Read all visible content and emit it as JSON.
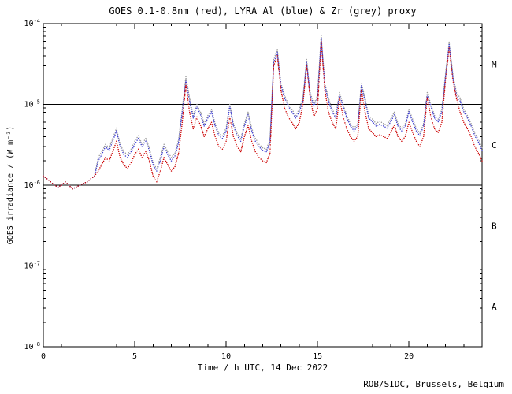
{
  "chart_data": {
    "type": "scatter",
    "title": "GOES 0.1-0.8nm (red), LYRA Al (blue) & Zr (grey) proxy",
    "xlabel": "Time / h UTC, 14 Dec 2022",
    "ylabel": "GOES irradiance / (W m⁻²)",
    "credit": "ROB/SIDC, Brussels, Belgium",
    "grid": false,
    "legend_position": "none (colors named in title)",
    "xlim": [
      0,
      24
    ],
    "ylog_range": [
      -8,
      -4
    ],
    "x_ticks": [
      0,
      5,
      10,
      15,
      20
    ],
    "x_minor_step": 1,
    "y_tick_exponents": [
      -4,
      -5,
      -6,
      -7,
      -8
    ],
    "class_boundary_exponents": [
      -5,
      -6,
      -7
    ],
    "flare_classes": [
      {
        "label": "M",
        "mid_exp": -4.5
      },
      {
        "label": "C",
        "mid_exp": -5.5
      },
      {
        "label": "B",
        "mid_exp": -6.5
      },
      {
        "label": "A",
        "mid_exp": -7.5
      }
    ],
    "x_start": 0,
    "x_step": 0.2,
    "series": [
      {
        "name": "Zr proxy",
        "color": "#9a9a9a",
        "values": [
          1.3e-06,
          1.2e-06,
          1.1e-06,
          1e-06,
          9.5e-07,
          1e-06,
          1.1e-06,
          1e-06,
          9e-07,
          9.5e-07,
          1e-06,
          1.05e-06,
          1.1e-06,
          1.2e-06,
          1.3e-06,
          2.2e-06,
          2.6e-06,
          3.2e-06,
          2.9e-06,
          3.8e-06,
          5.1e-06,
          3.2e-06,
          2.6e-06,
          2.4e-06,
          2.8e-06,
          3.5e-06,
          4.1e-06,
          3.2e-06,
          3.8e-06,
          2.9e-06,
          1.9e-06,
          1.6e-06,
          2.2e-06,
          3.2e-06,
          2.6e-06,
          2.2e-06,
          2.5e-06,
          3.7e-06,
          8.7e-06,
          2.2e-05,
          1.2e-05,
          7.3e-06,
          1e-05,
          8e-06,
          5.8e-06,
          7.3e-06,
          8.7e-06,
          5.8e-06,
          4.4e-06,
          4.1e-06,
          5.1e-06,
          1e-05,
          5.8e-06,
          4.4e-06,
          3.8e-06,
          5.8e-06,
          8e-06,
          5.1e-06,
          3.8e-06,
          3.2e-06,
          2.9e-06,
          2.8e-06,
          3.7e-06,
          3.6e-05,
          4.8e-05,
          1.8e-05,
          1.3e-05,
          1e-05,
          8.7e-06,
          7.3e-06,
          8.7e-06,
          1.2e-05,
          3.6e-05,
          1.4e-05,
          1e-05,
          1.3e-05,
          7.1e-05,
          1.8e-05,
          1.2e-05,
          8.7e-06,
          7.3e-06,
          1.4e-05,
          1e-05,
          7.3e-06,
          5.8e-06,
          5.1e-06,
          5.8e-06,
          1.8e-05,
          1.2e-05,
          7.3e-06,
          6.6e-06,
          5.8e-06,
          6.2e-06,
          5.8e-06,
          5.5e-06,
          6.6e-06,
          8e-06,
          5.8e-06,
          5.1e-06,
          5.8e-06,
          8.7e-06,
          6.6e-06,
          5.1e-06,
          4.4e-06,
          5.8e-06,
          1.4e-05,
          1e-05,
          7.3e-06,
          6.6e-06,
          8.7e-06,
          2.4e-05,
          5.9e-05,
          2.4e-05,
          1.4e-05,
          1.2e-05,
          8.7e-06,
          7.3e-06,
          5.8e-06,
          4.4e-06,
          3.7e-06,
          2.9e-06
        ]
      },
      {
        "name": "LYRA Al",
        "color": "#3b3bd0",
        "values": [
          1.3e-06,
          1.2e-06,
          1.1e-06,
          1e-06,
          9.5e-07,
          1e-06,
          1.1e-06,
          1e-06,
          9e-07,
          9.5e-07,
          1e-06,
          1.05e-06,
          1.1e-06,
          1.2e-06,
          1.3e-06,
          2e-06,
          2.4e-06,
          3e-06,
          2.7e-06,
          3.5e-06,
          4.7e-06,
          3e-06,
          2.4e-06,
          2.2e-06,
          2.6e-06,
          3.2e-06,
          3.8e-06,
          3e-06,
          3.5e-06,
          2.7e-06,
          1.8e-06,
          1.5e-06,
          2e-06,
          3e-06,
          2.4e-06,
          2e-06,
          2.3e-06,
          3.4e-06,
          8.1e-06,
          2e-05,
          1.1e-05,
          6.8e-06,
          9.5e-06,
          7.4e-06,
          5.4e-06,
          6.8e-06,
          8.1e-06,
          5.4e-06,
          4.1e-06,
          3.8e-06,
          4.7e-06,
          9.5e-06,
          5.4e-06,
          4.1e-06,
          3.5e-06,
          5.4e-06,
          7.4e-06,
          4.7e-06,
          3.5e-06,
          3e-06,
          2.7e-06,
          2.6e-06,
          3.4e-06,
          3.3e-05,
          4.4e-05,
          1.7e-05,
          1.2e-05,
          9.5e-06,
          8.1e-06,
          6.8e-06,
          8.1e-06,
          1.1e-05,
          3.3e-05,
          1.3e-05,
          9.5e-06,
          1.2e-05,
          6.6e-05,
          1.7e-05,
          1.1e-05,
          8.1e-06,
          6.8e-06,
          1.3e-05,
          9.5e-06,
          6.8e-06,
          5.4e-06,
          4.7e-06,
          5.4e-06,
          1.7e-05,
          1.1e-05,
          6.8e-06,
          6.1e-06,
          5.4e-06,
          5.7e-06,
          5.4e-06,
          5.1e-06,
          6.1e-06,
          7.4e-06,
          5.4e-06,
          4.7e-06,
          5.4e-06,
          8.1e-06,
          6.1e-06,
          4.7e-06,
          4.1e-06,
          5.4e-06,
          1.3e-05,
          9.5e-06,
          6.8e-06,
          6.1e-06,
          8.1e-06,
          2.2e-05,
          5.5e-05,
          2.2e-05,
          1.3e-05,
          1.1e-05,
          8.1e-06,
          6.8e-06,
          5.4e-06,
          4.1e-06,
          3.4e-06,
          2.7e-06
        ]
      },
      {
        "name": "GOES 0.1-0.8nm",
        "color": "#cc0000",
        "values": [
          1.3e-06,
          1.2e-06,
          1.1e-06,
          1e-06,
          9.5e-07,
          1e-06,
          1.1e-06,
          1e-06,
          9e-07,
          9.5e-07,
          1e-06,
          1.05e-06,
          1.1e-06,
          1.2e-06,
          1.3e-06,
          1.5e-06,
          1.8e-06,
          2.2e-06,
          2e-06,
          2.6e-06,
          3.5e-06,
          2.2e-06,
          1.8e-06,
          1.6e-06,
          1.9e-06,
          2.4e-06,
          2.8e-06,
          2.2e-06,
          2.6e-06,
          2e-06,
          1.3e-06,
          1.1e-06,
          1.5e-06,
          2.2e-06,
          1.8e-06,
          1.5e-06,
          1.7e-06,
          2.5e-06,
          6e-06,
          1.8e-05,
          8e-06,
          5e-06,
          7e-06,
          5.5e-06,
          4e-06,
          5e-06,
          6e-06,
          4e-06,
          3e-06,
          2.8e-06,
          3.5e-06,
          7e-06,
          4e-06,
          3e-06,
          2.6e-06,
          4e-06,
          5.5e-06,
          3.5e-06,
          2.6e-06,
          2.2e-06,
          2e-06,
          1.9e-06,
          2.5e-06,
          3e-05,
          4e-05,
          1.5e-05,
          9e-06,
          7e-06,
          6e-06,
          5e-06,
          6e-06,
          1e-05,
          3e-05,
          1.2e-05,
          7e-06,
          9e-06,
          6e-05,
          1.5e-05,
          8e-06,
          6e-06,
          5e-06,
          1.2e-05,
          7e-06,
          5e-06,
          4e-06,
          3.5e-06,
          4e-06,
          1.5e-05,
          8e-06,
          5e-06,
          4.5e-06,
          4e-06,
          4.2e-06,
          4e-06,
          3.8e-06,
          4.5e-06,
          5.5e-06,
          4e-06,
          3.5e-06,
          4e-06,
          6e-06,
          4.5e-06,
          3.5e-06,
          3e-06,
          4e-06,
          1.2e-05,
          7e-06,
          5e-06,
          4.5e-06,
          6e-06,
          2e-05,
          5e-05,
          2e-05,
          1.2e-05,
          8e-06,
          6e-06,
          5e-06,
          4e-06,
          3e-06,
          2.5e-06,
          2e-06
        ]
      }
    ]
  }
}
